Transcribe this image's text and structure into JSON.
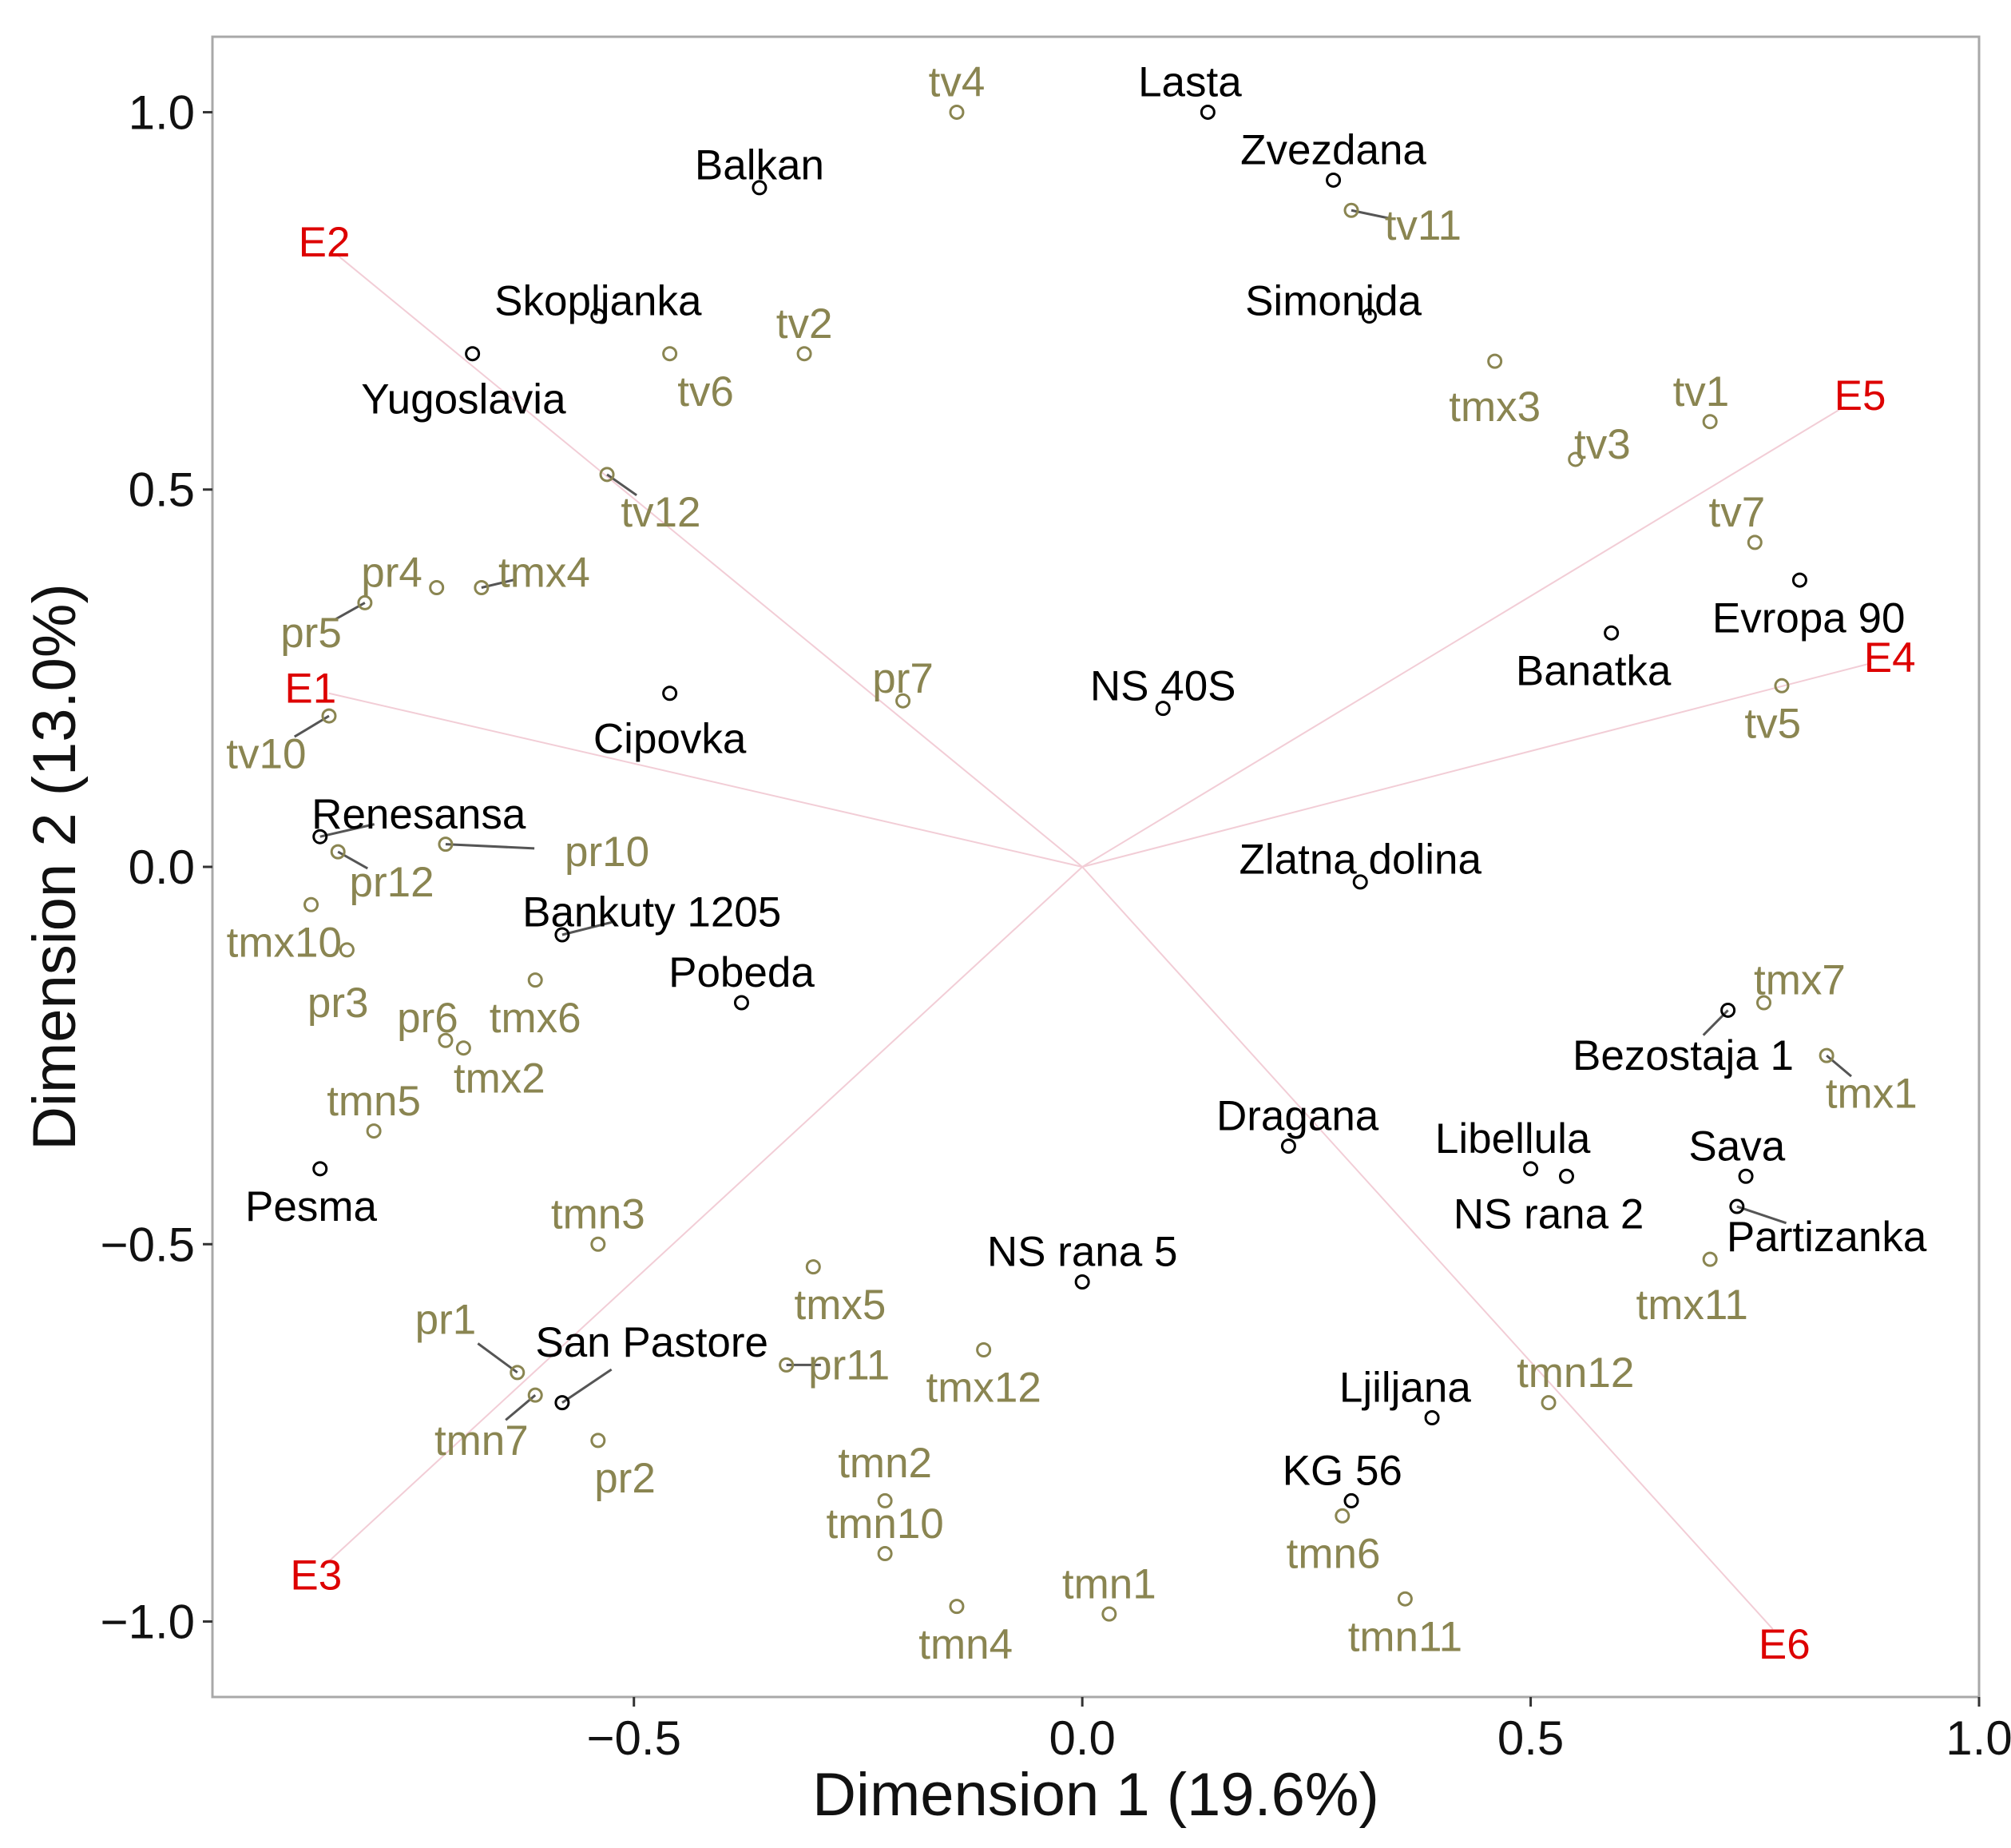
{
  "chart_data": {
    "type": "scatter",
    "title": "",
    "xlabel": "Dimension 1 (19.6%)",
    "ylabel": "Dimension 2 (13.0%)",
    "xlim": [
      -0.97,
      1.0
    ],
    "ylim": [
      -1.1,
      1.1
    ],
    "xticks": [
      -0.5,
      0.0,
      0.5,
      1.0
    ],
    "xtick_labels": [
      "−0.5",
      "0.0",
      "0.5",
      "1.0"
    ],
    "yticks": [
      1.0,
      0.5,
      0.0,
      -0.5,
      -1.0
    ],
    "ytick_labels": [
      "1.0",
      "0.5",
      "0.0",
      "−0.5",
      "−1.0"
    ],
    "grid": false,
    "colors": {
      "genotype": "#000000",
      "trait": "#8a8551",
      "env": "#dd0000",
      "env_line": "#f2cdd6",
      "connector": "#555555",
      "frame": "#a8a8a8"
    },
    "environment_vectors": [
      {
        "name": "E1",
        "x": -0.84,
        "y": 0.23
      },
      {
        "name": "E2",
        "x": -0.83,
        "y": 0.81
      },
      {
        "name": "E3",
        "x": -0.84,
        "y": -0.92
      },
      {
        "name": "E4",
        "x": 0.88,
        "y": 0.27
      },
      {
        "name": "E5",
        "x": 0.85,
        "y": 0.61
      },
      {
        "name": "E6",
        "x": 0.77,
        "y": -1.01
      }
    ],
    "series": [
      {
        "name": "genotypes",
        "points": [
          {
            "label": "Lasta",
            "x": 0.14,
            "y": 1.0,
            "lx": 0.12,
            "ly": 1.04
          },
          {
            "label": "Balkan",
            "x": -0.36,
            "y": 0.9,
            "lx": -0.36,
            "ly": 0.93
          },
          {
            "label": "Zvezdana",
            "x": 0.28,
            "y": 0.91,
            "lx": 0.28,
            "ly": 0.95
          },
          {
            "label": "Skopljanka",
            "x": -0.54,
            "y": 0.73,
            "lx": -0.54,
            "ly": 0.75
          },
          {
            "label": "Simonida",
            "x": 0.32,
            "y": 0.73,
            "lx": 0.28,
            "ly": 0.75
          },
          {
            "label": "Yugoslavia",
            "x": -0.68,
            "y": 0.68,
            "lx": -0.69,
            "ly": 0.62
          },
          {
            "label": "Evropa 90",
            "x": 0.8,
            "y": 0.38,
            "lx": 0.81,
            "ly": 0.33
          },
          {
            "label": "Banatka",
            "x": 0.59,
            "y": 0.31,
            "lx": 0.57,
            "ly": 0.26
          },
          {
            "label": "NS 40S",
            "x": 0.09,
            "y": 0.21,
            "lx": 0.09,
            "ly": 0.24
          },
          {
            "label": "Cipovka",
            "x": -0.46,
            "y": 0.23,
            "lx": -0.46,
            "ly": 0.17
          },
          {
            "label": "Zlatna dolina",
            "x": 0.31,
            "y": -0.02,
            "lx": 0.31,
            "ly": 0.01
          },
          {
            "label": "Renesansa",
            "x": -0.85,
            "y": 0.04,
            "lx": -0.74,
            "ly": 0.07
          },
          {
            "label": "Bankuty 1205",
            "x": -0.58,
            "y": -0.09,
            "lx": -0.48,
            "ly": -0.06
          },
          {
            "label": "Pobeda",
            "x": -0.38,
            "y": -0.18,
            "lx": -0.38,
            "ly": -0.14
          },
          {
            "label": "Bezostaja 1",
            "x": 0.72,
            "y": -0.19,
            "lx": 0.67,
            "ly": -0.25
          },
          {
            "label": "Dragana",
            "x": 0.23,
            "y": -0.37,
            "lx": 0.24,
            "ly": -0.33
          },
          {
            "label": "Libellula",
            "x": 0.5,
            "y": -0.4,
            "lx": 0.48,
            "ly": -0.36
          },
          {
            "label": "Sava",
            "x": 0.74,
            "y": -0.41,
            "lx": 0.73,
            "ly": -0.37
          },
          {
            "label": "NS rana 2",
            "x": 0.54,
            "y": -0.41,
            "lx": 0.52,
            "ly": -0.46
          },
          {
            "label": "Partizanka",
            "x": 0.73,
            "y": -0.45,
            "lx": 0.83,
            "ly": -0.49
          },
          {
            "label": "Pesma",
            "x": -0.85,
            "y": -0.4,
            "lx": -0.86,
            "ly": -0.45
          },
          {
            "label": "NS rana 5",
            "x": 0.0,
            "y": -0.55,
            "lx": 0.0,
            "ly": -0.51
          },
          {
            "label": "San Pastore",
            "x": -0.58,
            "y": -0.71,
            "lx": -0.48,
            "ly": -0.63
          },
          {
            "label": "Ljiljana",
            "x": 0.39,
            "y": -0.73,
            "lx": 0.36,
            "ly": -0.69
          },
          {
            "label": "KG 56",
            "x": 0.3,
            "y": -0.84,
            "lx": 0.29,
            "ly": -0.8
          }
        ]
      },
      {
        "name": "traits",
        "points": [
          {
            "label": "tv4",
            "x": -0.14,
            "y": 1.0,
            "lx": -0.14,
            "ly": 1.04
          },
          {
            "label": "tv11",
            "x": 0.3,
            "y": 0.87,
            "lx": 0.38,
            "ly": 0.85
          },
          {
            "label": "tv2",
            "x": -0.31,
            "y": 0.68,
            "lx": -0.31,
            "ly": 0.72
          },
          {
            "label": "tv6",
            "x": -0.46,
            "y": 0.68,
            "lx": -0.42,
            "ly": 0.63
          },
          {
            "label": "tmx3",
            "x": 0.46,
            "y": 0.67,
            "lx": 0.46,
            "ly": 0.61
          },
          {
            "label": "tv1",
            "x": 0.7,
            "y": 0.59,
            "lx": 0.69,
            "ly": 0.63
          },
          {
            "label": "tv3",
            "x": 0.55,
            "y": 0.54,
            "lx": 0.58,
            "ly": 0.56
          },
          {
            "label": "tv12",
            "x": -0.53,
            "y": 0.52,
            "lx": -0.47,
            "ly": 0.47
          },
          {
            "label": "tv7",
            "x": 0.75,
            "y": 0.43,
            "lx": 0.73,
            "ly": 0.47
          },
          {
            "label": "pr4",
            "x": -0.72,
            "y": 0.37,
            "lx": -0.77,
            "ly": 0.39
          },
          {
            "label": "tmx4",
            "x": -0.67,
            "y": 0.37,
            "lx": -0.6,
            "ly": 0.39
          },
          {
            "label": "pr5",
            "x": -0.8,
            "y": 0.35,
            "lx": -0.86,
            "ly": 0.31
          },
          {
            "label": "tv5",
            "x": 0.78,
            "y": 0.24,
            "lx": 0.77,
            "ly": 0.19
          },
          {
            "label": "pr7",
            "x": -0.2,
            "y": 0.22,
            "lx": -0.2,
            "ly": 0.25
          },
          {
            "label": "tv10",
            "x": -0.84,
            "y": 0.2,
            "lx": -0.91,
            "ly": 0.15
          },
          {
            "label": "pr10",
            "x": -0.71,
            "y": 0.03,
            "lx": -0.53,
            "ly": 0.02
          },
          {
            "label": "pr12",
            "x": -0.83,
            "y": 0.02,
            "lx": -0.77,
            "ly": -0.02
          },
          {
            "label": "tmx10",
            "x": -0.86,
            "y": -0.05,
            "lx": -0.89,
            "ly": -0.1
          },
          {
            "label": "pr3",
            "x": -0.82,
            "y": -0.11,
            "lx": -0.83,
            "ly": -0.18
          },
          {
            "label": "tmx6",
            "x": -0.61,
            "y": -0.15,
            "lx": -0.61,
            "ly": -0.2
          },
          {
            "label": "tmx7",
            "x": 0.76,
            "y": -0.18,
            "lx": 0.8,
            "ly": -0.15
          },
          {
            "label": "pr6",
            "x": -0.71,
            "y": -0.23,
            "lx": -0.73,
            "ly": -0.2
          },
          {
            "label": "tmx2",
            "x": -0.69,
            "y": -0.24,
            "lx": -0.65,
            "ly": -0.28
          },
          {
            "label": "tmx1",
            "x": 0.83,
            "y": -0.25,
            "lx": 0.88,
            "ly": -0.3
          },
          {
            "label": "tmn5",
            "x": -0.79,
            "y": -0.35,
            "lx": -0.79,
            "ly": -0.31
          },
          {
            "label": "tmn3",
            "x": -0.54,
            "y": -0.5,
            "lx": -0.54,
            "ly": -0.46
          },
          {
            "label": "tmx11",
            "x": 0.7,
            "y": -0.52,
            "lx": 0.68,
            "ly": -0.58
          },
          {
            "label": "tmx5",
            "x": -0.3,
            "y": -0.53,
            "lx": -0.27,
            "ly": -0.58
          },
          {
            "label": "tmx12",
            "x": -0.11,
            "y": -0.64,
            "lx": -0.11,
            "ly": -0.69
          },
          {
            "label": "pr11",
            "x": -0.33,
            "y": -0.66,
            "lx": -0.26,
            "ly": -0.66
          },
          {
            "label": "pr1",
            "x": -0.63,
            "y": -0.67,
            "lx": -0.71,
            "ly": -0.6
          },
          {
            "label": "tmn7",
            "x": -0.61,
            "y": -0.7,
            "lx": -0.67,
            "ly": -0.76
          },
          {
            "label": "tmn12",
            "x": 0.52,
            "y": -0.71,
            "lx": 0.55,
            "ly": -0.67
          },
          {
            "label": "pr2",
            "x": -0.54,
            "y": -0.76,
            "lx": -0.51,
            "ly": -0.81
          },
          {
            "label": "tmn2",
            "x": -0.22,
            "y": -0.84,
            "lx": -0.22,
            "ly": -0.79
          },
          {
            "label": "tmn6",
            "x": 0.29,
            "y": -0.86,
            "lx": 0.28,
            "ly": -0.91
          },
          {
            "label": "tmn10",
            "x": -0.22,
            "y": -0.91,
            "lx": -0.22,
            "ly": -0.87
          },
          {
            "label": "tmn11",
            "x": 0.36,
            "y": -0.97,
            "lx": 0.36,
            "ly": -1.02
          },
          {
            "label": "tmn4",
            "x": -0.14,
            "y": -0.98,
            "lx": -0.13,
            "ly": -1.03
          },
          {
            "label": "tmn1",
            "x": 0.03,
            "y": -0.99,
            "lx": 0.03,
            "ly": -0.95
          }
        ]
      }
    ]
  }
}
